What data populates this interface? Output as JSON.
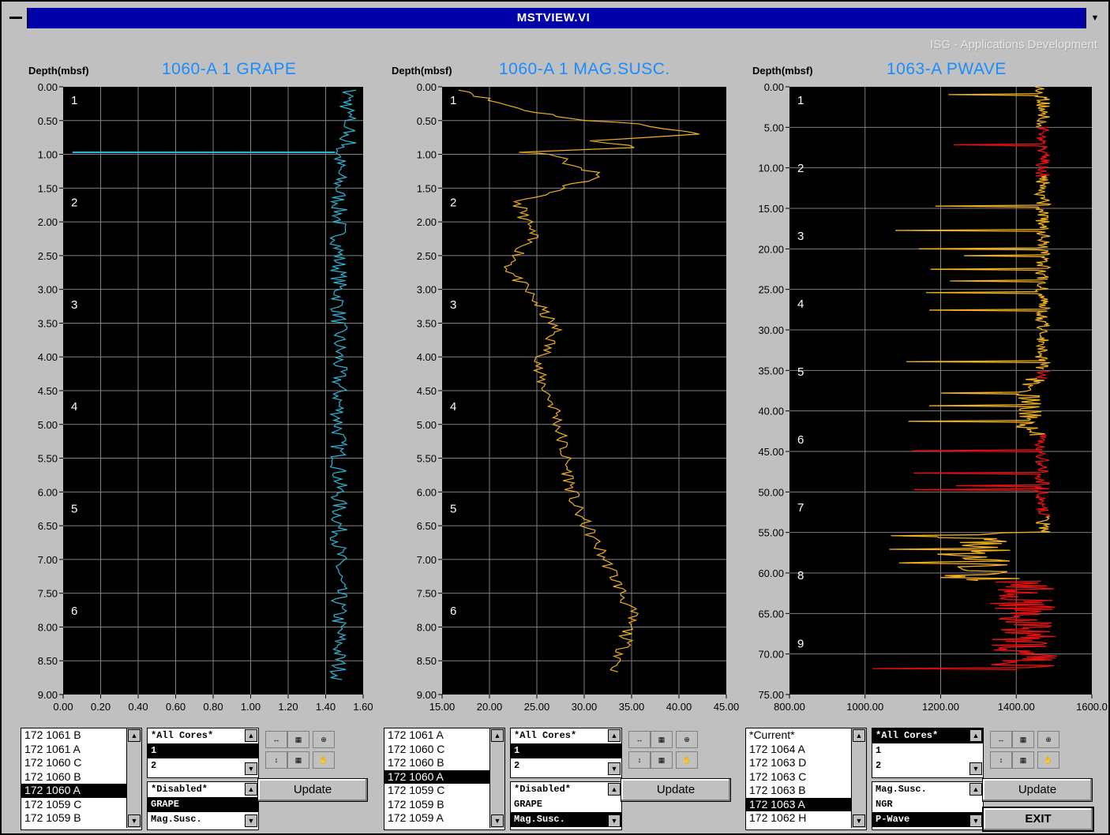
{
  "window": {
    "title": "MSTVIEW.VI",
    "credit": "ISG - Applications Development"
  },
  "panels": [
    {
      "depth_label": "Depth(mbsf)",
      "title": "1060-A 1  GRAPE",
      "color": "#2ab8d8",
      "ytick_labels": [
        "0.00",
        "0.50",
        "1.00",
        "1.50",
        "2.00",
        "2.50",
        "3.00",
        "3.50",
        "4.00",
        "4.50",
        "5.00",
        "5.50",
        "6.00",
        "6.50",
        "7.00",
        "7.50",
        "8.00",
        "8.50",
        "9.00"
      ],
      "xtick_labels": [
        "0.00",
        "0.20",
        "0.40",
        "0.60",
        "0.80",
        "1.00",
        "1.20",
        "1.40",
        "1.60"
      ],
      "core_labels": [
        "1",
        "2",
        "3",
        "4",
        "5",
        "6"
      ],
      "sites": [
        "172 1061 B",
        "172 1061 A",
        "172 1060 C",
        "172 1060 B",
        "172 1060 A",
        "172 1059 C",
        "172 1059 B"
      ],
      "selected_site": 4,
      "cores": [
        "*All Cores*",
        "1",
        "2"
      ],
      "selected_core": 1,
      "sensors": [
        "*Disabled*",
        "GRAPE",
        "Mag.Susc."
      ],
      "selected_sensor": 1,
      "update_label": "Update"
    },
    {
      "depth_label": "Depth(mbsf)",
      "title": "1060-A 1  MAG.SUSC.",
      "color": "#f0b020",
      "ytick_labels": [
        "0.00",
        "0.50",
        "1.00",
        "1.50",
        "2.00",
        "2.50",
        "3.00",
        "3.50",
        "4.00",
        "4.50",
        "5.00",
        "5.50",
        "6.00",
        "6.50",
        "7.00",
        "7.50",
        "8.00",
        "8.50",
        "9.00"
      ],
      "xtick_labels": [
        "15.00",
        "20.00",
        "25.00",
        "30.00",
        "35.00",
        "40.00",
        "45.00"
      ],
      "core_labels": [
        "1",
        "2",
        "3",
        "4",
        "5",
        "6"
      ],
      "sites": [
        "172 1061 A",
        "172 1060 C",
        "172 1060 B",
        "172 1060 A",
        "172 1059 C",
        "172 1059 B",
        "172 1059 A"
      ],
      "selected_site": 3,
      "cores": [
        "*All Cores*",
        "1",
        "2"
      ],
      "selected_core": 1,
      "sensors": [
        "*Disabled*",
        "GRAPE",
        "Mag.Susc."
      ],
      "selected_sensor": 2,
      "update_label": "Update"
    },
    {
      "depth_label": "Depth(mbsf)",
      "title": "1063-A  PWAVE",
      "color": "#f0b020",
      "color2": "#e81010",
      "ytick_labels": [
        "0.00",
        "5.00",
        "10.00",
        "15.00",
        "20.00",
        "25.00",
        "30.00",
        "35.00",
        "40.00",
        "45.00",
        "50.00",
        "55.00",
        "60.00",
        "65.00",
        "70.00",
        "75.00"
      ],
      "xtick_labels": [
        "800.00",
        "1000.00",
        "1200.00",
        "1400.00",
        "1600.0"
      ],
      "core_labels": [
        "1",
        "2",
        "3",
        "4",
        "5",
        "6",
        "7",
        "8",
        "9"
      ],
      "sites": [
        "*Current*",
        "172 1064 A",
        "172 1063 D",
        "172 1063 C",
        "172 1063 B",
        "172 1063 A",
        "172 1062 H"
      ],
      "selected_site": 5,
      "cores": [
        "*All Cores*",
        "1",
        "2"
      ],
      "selected_core": 0,
      "sensors": [
        "Mag.Susc.",
        "NGR",
        "P-Wave"
      ],
      "selected_sensor": 2,
      "update_label": "Update",
      "exit_label": "EXIT"
    }
  ],
  "chart_data": [
    {
      "type": "line",
      "title": "1060-A 1  GRAPE",
      "ylabel": "Depth(mbsf)",
      "xlim": [
        0.0,
        1.6
      ],
      "ylim": [
        0.0,
        9.0
      ],
      "y_inverted": true,
      "series": [
        {
          "name": "GRAPE",
          "x_range_approx": [
            1.4,
            1.6
          ],
          "spike": {
            "depth": 0.97,
            "value": 0.05
          }
        }
      ]
    },
    {
      "type": "line",
      "title": "1060-A 1  MAG.SUSC.",
      "ylabel": "Depth(mbsf)",
      "xlim": [
        15.0,
        45.0
      ],
      "ylim": [
        0.0,
        9.0
      ],
      "y_inverted": true,
      "series": [
        {
          "name": "Mag.Susc.",
          "points": [
            [
              17.5,
              0.05
            ],
            [
              20,
              0.2
            ],
            [
              24,
              0.35
            ],
            [
              30,
              0.5
            ],
            [
              36,
              0.55
            ],
            [
              42,
              0.7
            ],
            [
              31,
              0.8
            ],
            [
              36,
              0.9
            ],
            [
              23,
              0.97
            ],
            [
              27,
              1.0
            ],
            [
              29,
              1.2
            ],
            [
              32,
              1.3
            ],
            [
              23,
              1.7
            ],
            [
              24.5,
              2.2
            ],
            [
              22,
              2.7
            ],
            [
              25,
              3.2
            ],
            [
              27,
              3.6
            ],
            [
              25,
              4.2
            ],
            [
              27,
              4.8
            ],
            [
              28,
              5.5
            ],
            [
              29,
              6.2
            ],
            [
              31,
              6.7
            ],
            [
              33,
              7.2
            ],
            [
              35,
              7.8
            ],
            [
              34,
              8.4
            ],
            [
              33,
              8.7
            ]
          ]
        }
      ]
    },
    {
      "type": "line",
      "title": "1063-A  PWAVE",
      "ylabel": "Depth(mbsf)",
      "xlim": [
        800.0,
        1600.0
      ],
      "ylim": [
        0.0,
        75.0
      ],
      "y_inverted": true,
      "series": [
        {
          "name": "P-Wave (orange)",
          "x_range_approx": [
            1000,
            1500
          ]
        },
        {
          "name": "P-Wave (red)",
          "x_range_approx": [
            1000,
            1500
          ]
        }
      ]
    }
  ]
}
